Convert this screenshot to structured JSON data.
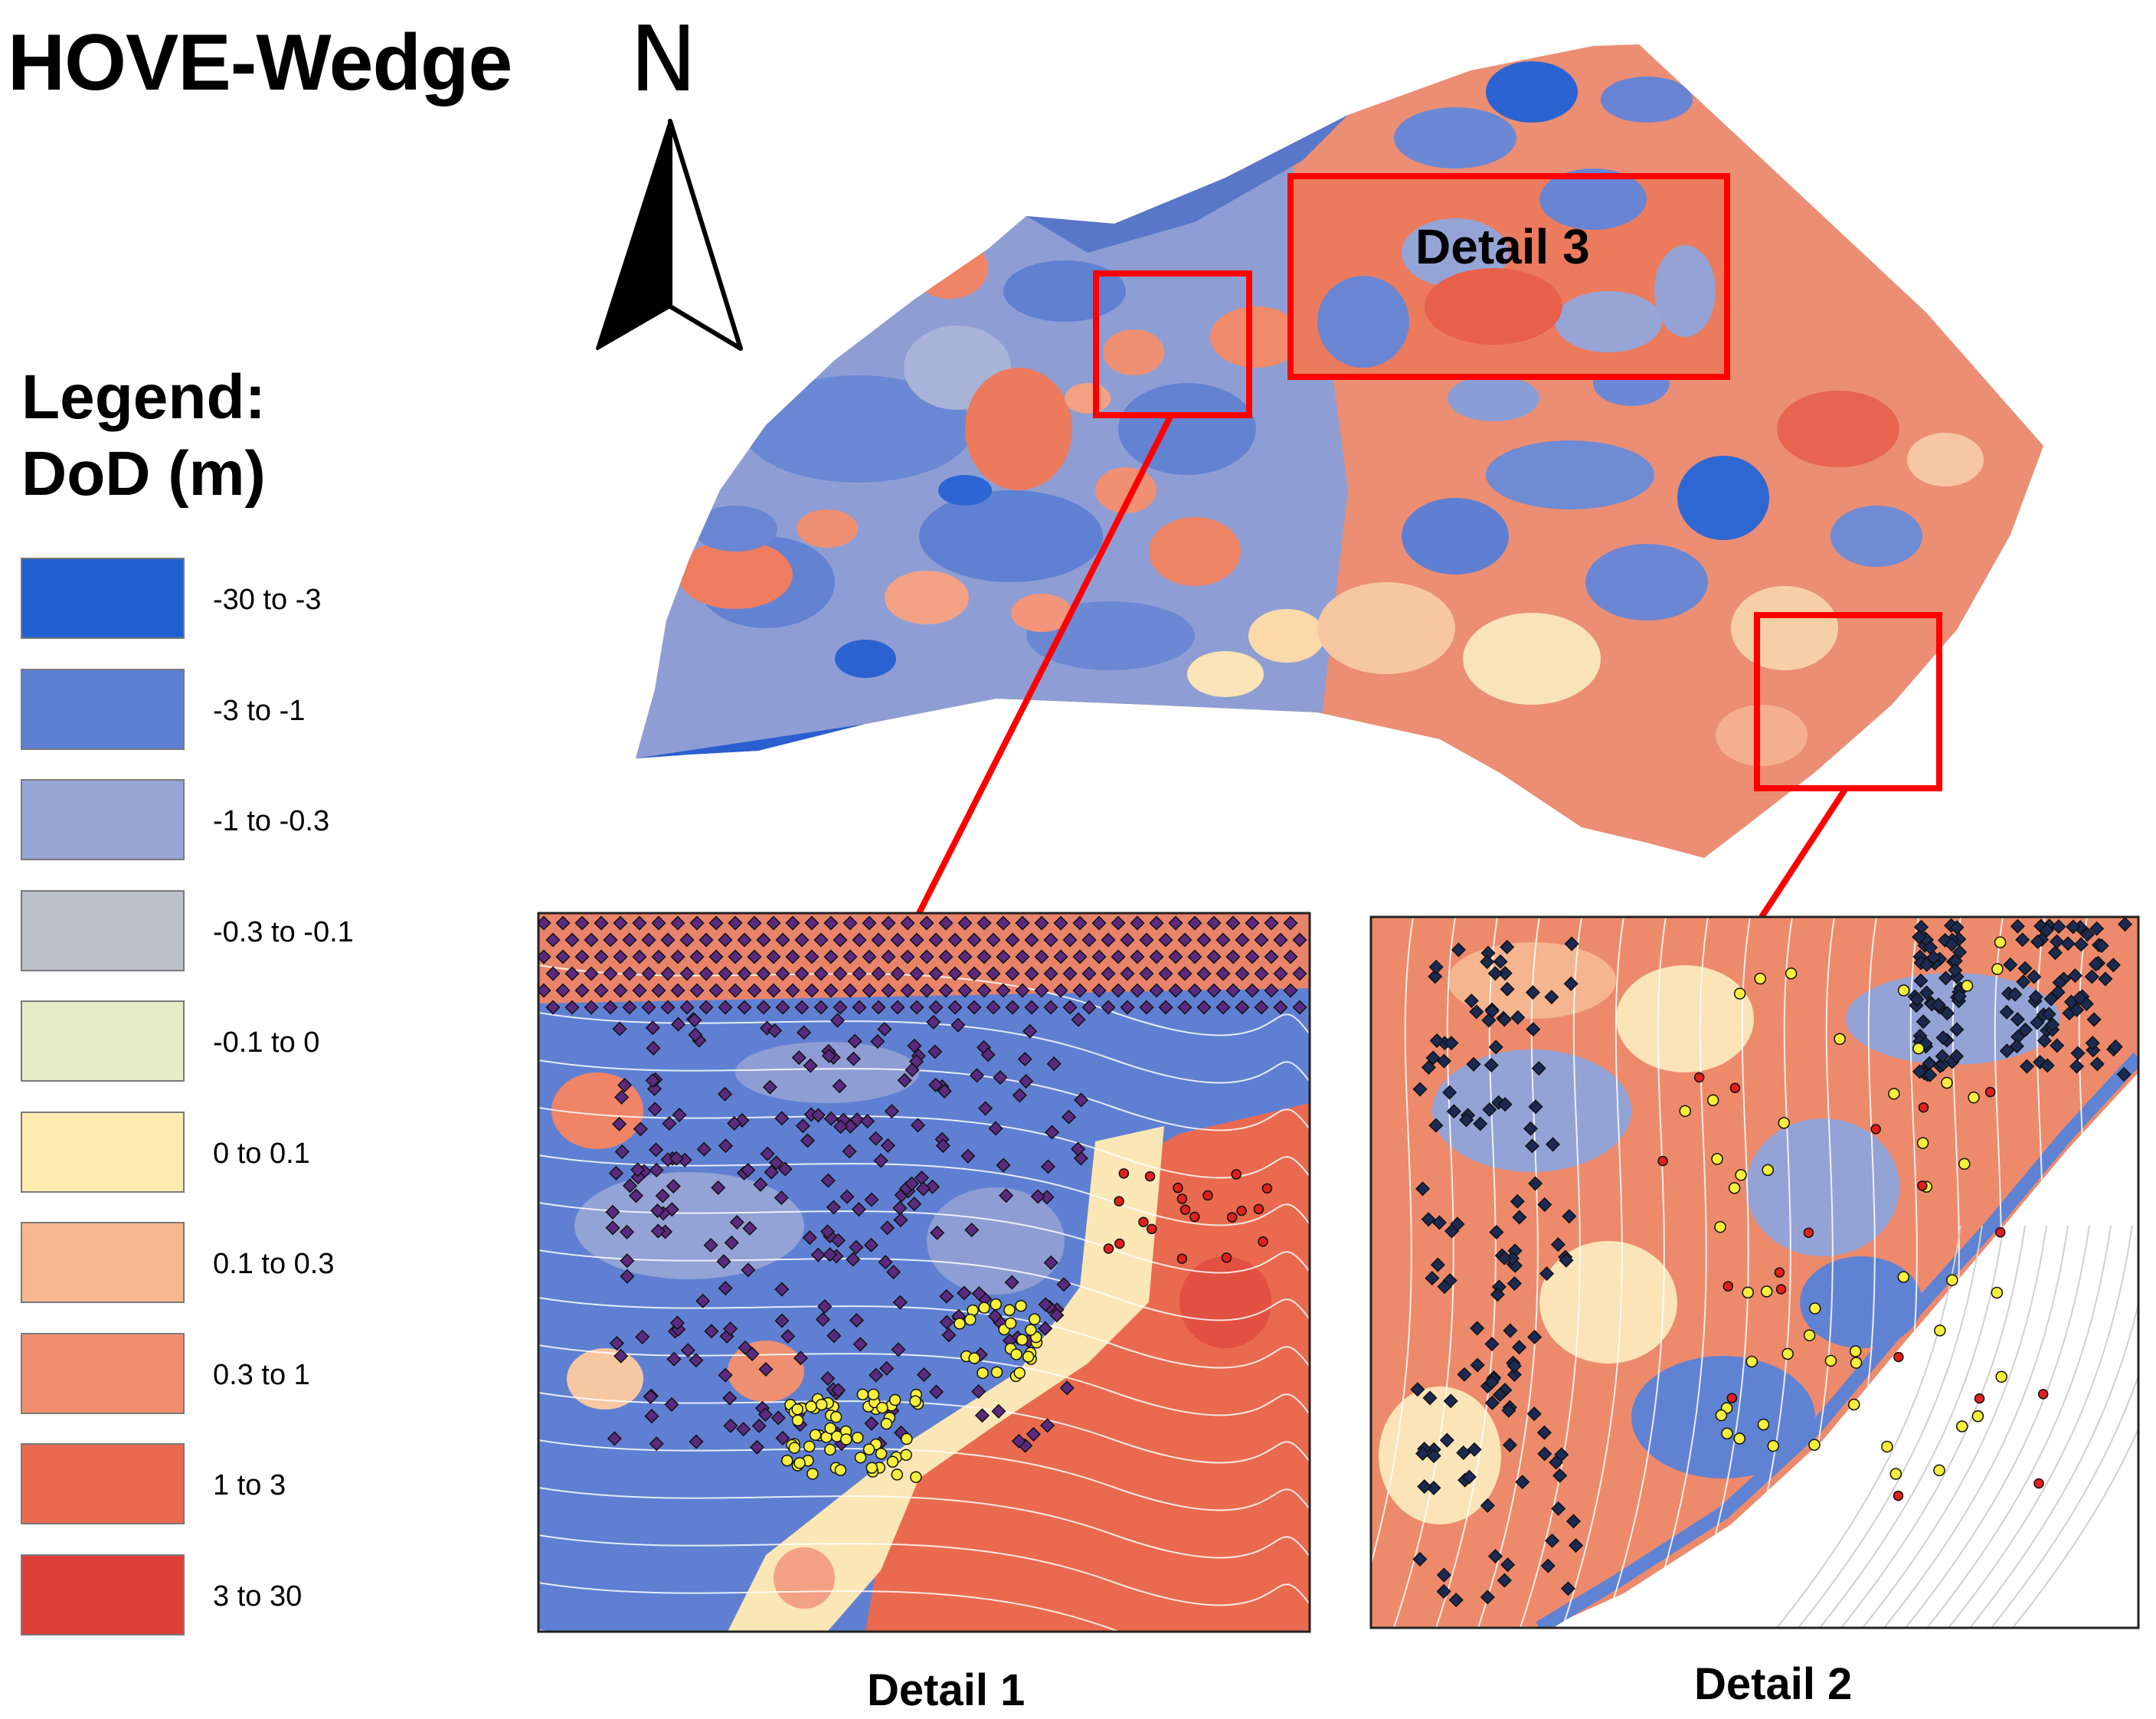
{
  "title": "HOVE-Wedge",
  "north_label": "N",
  "legend": {
    "heading_line1": "Legend:",
    "heading_line2": "DoD (m)",
    "items": [
      {
        "label": "-30 to -3",
        "color": "#1f5fd0"
      },
      {
        "label": "-3 to -1",
        "color": "#5e80d2"
      },
      {
        "label": "-1 to -0.3",
        "color": "#96a4d6"
      },
      {
        "label": "-0.3 to -0.1",
        "color": "#bcc0c9"
      },
      {
        "label": "-0.1 to 0",
        "color": "#e6ecc8"
      },
      {
        "label": "0 to 0.1",
        "color": "#fdebb0"
      },
      {
        "label": "0.1 to 0.3",
        "color": "#f8b88e"
      },
      {
        "label": "0.3 to 1",
        "color": "#f18e6e"
      },
      {
        "label": "1 to 3",
        "color": "#ea6a4f"
      },
      {
        "label": "3 to 30",
        "color": "#dc3f38"
      }
    ]
  },
  "details": {
    "detail1_caption": "Detail 1",
    "detail2_caption": "Detail 2",
    "detail3_label": "Detail 3"
  },
  "colors": {
    "highlight_box": "#ff0000",
    "contour": "#ffffff",
    "point_purple": "#5b2a7f",
    "point_navy": "#1b2a52",
    "point_yellow": "#f6f03a",
    "point_red": "#e0201c"
  }
}
